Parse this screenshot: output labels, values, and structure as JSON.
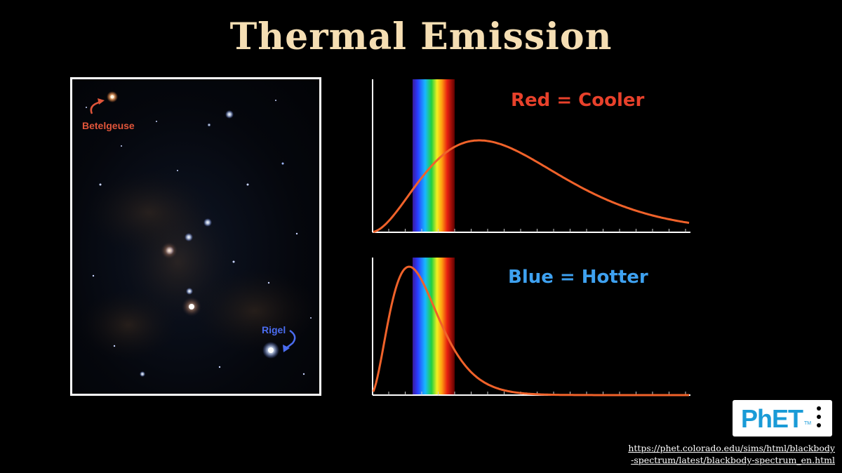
{
  "slide": {
    "title": "Thermal Emission",
    "title_color": "#f5deb3"
  },
  "image": {
    "betelgeuse_label": "Betelgeuse",
    "betelgeuse_color": "#e0553a",
    "rigel_label": "Rigel",
    "rigel_color": "#4a6cf0"
  },
  "graphs": [
    {
      "label": "Red = Cooler",
      "label_color": "#e8412b"
    },
    {
      "label": "Blue = Hotter",
      "label_color": "#3ea1f0"
    }
  ],
  "curve_color": "#f0622a",
  "phet": {
    "logo_text": "PhET",
    "trademark": "TM"
  },
  "link": {
    "line1": "https://phet.colorado.edu/sims/html/blackbody",
    "line2": "-spectrum/latest/blackbody-spectrum_en.html"
  }
}
